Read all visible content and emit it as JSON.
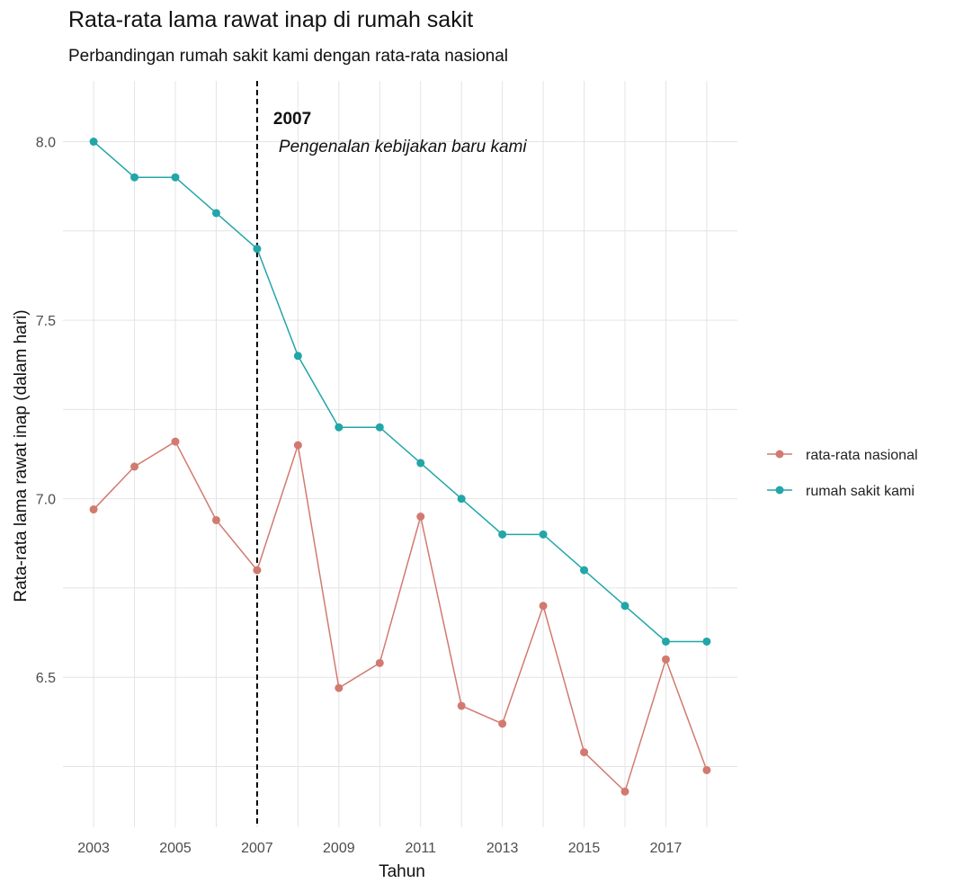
{
  "chart_data": {
    "type": "line",
    "title": "Rata-rata lama rawat inap di rumah sakit",
    "subtitle": "Perbandingan rumah sakit kami dengan rata-rata nasional",
    "xlabel": "Tahun",
    "ylabel": "Rata-rata lama rawat inap (dalam hari)",
    "x": [
      2003,
      2004,
      2005,
      2006,
      2007,
      2008,
      2009,
      2010,
      2011,
      2012,
      2013,
      2014,
      2015,
      2016,
      2017,
      2018
    ],
    "x_ticks": [
      "2003",
      "2005",
      "2007",
      "2009",
      "2011",
      "2013",
      "2015",
      "2017"
    ],
    "y_ticks": [
      "6.5",
      "7.0",
      "7.5",
      "8.0"
    ],
    "xlim": [
      2002.25,
      2018.75
    ],
    "ylim": [
      6.08,
      8.17
    ],
    "grid": true,
    "legend_position": "right",
    "series": [
      {
        "name": "rata-rata nasional",
        "color": "#d27a70",
        "values": [
          6.97,
          7.09,
          7.16,
          6.94,
          6.8,
          7.15,
          6.47,
          6.54,
          6.95,
          6.42,
          6.37,
          6.7,
          6.29,
          6.18,
          6.55,
          6.24
        ]
      },
      {
        "name": "rumah sakit kami",
        "color": "#22a6a8",
        "values": [
          8.0,
          7.9,
          7.9,
          7.8,
          7.7,
          7.4,
          7.2,
          7.2,
          7.1,
          7.0,
          6.9,
          6.9,
          6.8,
          6.7,
          6.6,
          6.6
        ]
      }
    ],
    "annotation": {
      "x": 2007,
      "line_style": "dashed",
      "label_bold": "2007",
      "label_italic": "Pengenalan kebijakan baru kami"
    }
  }
}
